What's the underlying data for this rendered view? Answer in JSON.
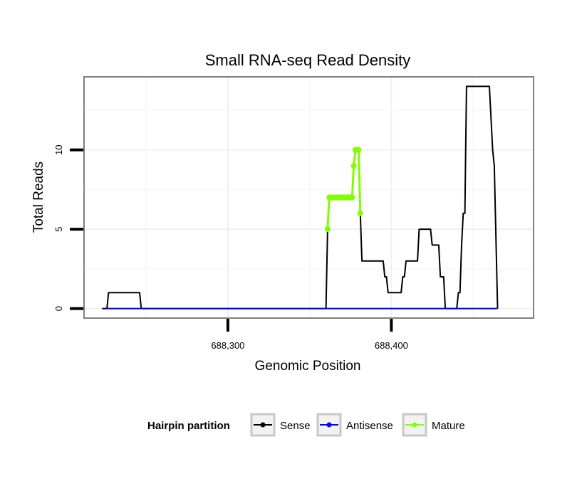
{
  "chart_data": {
    "type": "line",
    "title": "Small RNA-seq Read Density",
    "xlabel": "Genomic Position",
    "ylabel": "Total Reads",
    "xlim": [
      688212,
      688487
    ],
    "ylim": [
      -0.6,
      14.6
    ],
    "x_ticks": [
      688300,
      688400
    ],
    "x_tick_labels": [
      "688,300",
      "688,400"
    ],
    "y_ticks": [
      0,
      5,
      10
    ],
    "y_tick_labels": [
      "0",
      "5",
      "10"
    ],
    "grid": true,
    "legend": {
      "title": "Hairpin partition",
      "position": "bottom",
      "entries": [
        {
          "label": "Sense",
          "color": "#000000"
        },
        {
          "label": "Antisense",
          "color": "#0000ff"
        },
        {
          "label": "Mature",
          "color": "#7fff00"
        }
      ]
    },
    "series": [
      {
        "name": "Sense",
        "color": "#000000",
        "points": [
          [
            688223,
            0
          ],
          [
            688226,
            0
          ],
          [
            688227,
            1
          ],
          [
            688246,
            1
          ],
          [
            688247,
            0
          ],
          [
            688360,
            0
          ],
          [
            688361,
            5
          ],
          [
            688362,
            7
          ],
          [
            688376,
            7
          ],
          [
            688377,
            9
          ],
          [
            688378,
            10
          ],
          [
            688380,
            10
          ],
          [
            688381,
            6
          ],
          [
            688382,
            3
          ],
          [
            688395,
            3
          ],
          [
            688396,
            2
          ],
          [
            688397,
            2
          ],
          [
            688398,
            1
          ],
          [
            688406,
            1
          ],
          [
            688407,
            2
          ],
          [
            688408,
            2
          ],
          [
            688409,
            3
          ],
          [
            688416,
            3
          ],
          [
            688417,
            5
          ],
          [
            688424,
            5
          ],
          [
            688425,
            4
          ],
          [
            688429,
            4
          ],
          [
            688430,
            2
          ],
          [
            688432,
            2
          ],
          [
            688433,
            0
          ],
          [
            688440,
            0
          ],
          [
            688441,
            1
          ],
          [
            688442,
            1
          ],
          [
            688443,
            4
          ],
          [
            688444,
            6
          ],
          [
            688445,
            6
          ],
          [
            688446,
            14
          ],
          [
            688460,
            14
          ],
          [
            688462,
            10
          ],
          [
            688463,
            9
          ],
          [
            688465,
            0
          ]
        ]
      },
      {
        "name": "Antisense",
        "color": "#0000ff",
        "points": [
          [
            688225,
            0
          ],
          [
            688465,
            0
          ]
        ]
      },
      {
        "name": "Mature",
        "color": "#7fff00",
        "points": [
          [
            688361,
            5
          ],
          [
            688362,
            7
          ],
          [
            688363,
            7
          ],
          [
            688364,
            7
          ],
          [
            688365,
            7
          ],
          [
            688366,
            7
          ],
          [
            688367,
            7
          ],
          [
            688368,
            7
          ],
          [
            688369,
            7
          ],
          [
            688370,
            7
          ],
          [
            688371,
            7
          ],
          [
            688372,
            7
          ],
          [
            688373,
            7
          ],
          [
            688374,
            7
          ],
          [
            688375,
            7
          ],
          [
            688376,
            7
          ],
          [
            688377,
            9
          ],
          [
            688378,
            10
          ],
          [
            688379,
            10
          ],
          [
            688380,
            10
          ],
          [
            688381,
            6
          ]
        ]
      }
    ]
  }
}
